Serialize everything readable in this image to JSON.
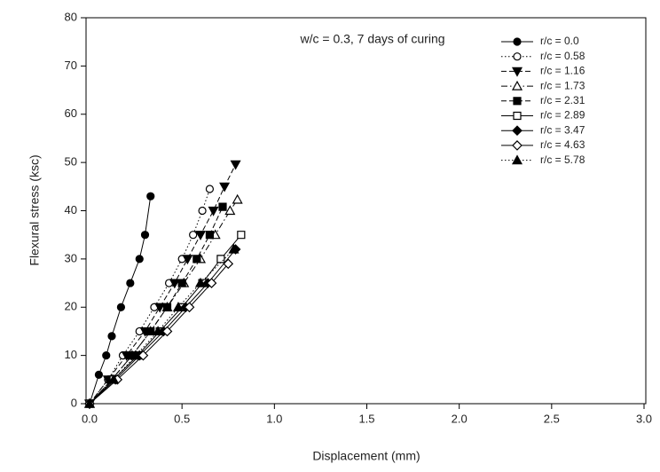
{
  "chart_data": {
    "type": "line",
    "annotation": "w/c = 0.3, 7 days of curing",
    "x_label": "Displacement (mm)",
    "y_label": "Flexural stress (ksc)",
    "xlim": [
      0,
      3
    ],
    "ylim": [
      0,
      80
    ],
    "xticks": [
      {
        "value": 0,
        "label": "0.0"
      },
      0.5,
      {
        "value": 1,
        "label": "1.0"
      },
      1.5,
      {
        "value": 2,
        "label": "2.0"
      },
      2.5,
      {
        "value": 3,
        "label": "3.0"
      }
    ],
    "yticks": [
      0,
      10,
      20,
      30,
      40,
      50,
      60,
      70,
      80
    ],
    "grid": false,
    "legend": "upper right",
    "series": [
      {
        "name": "r/c = 0.0",
        "color": "#000000",
        "marker": "circle",
        "filled": true,
        "dash": "solid",
        "x": [
          0,
          0.05,
          0.09,
          0.12,
          0.17,
          0.22,
          0.27,
          0.3,
          0.33
        ],
        "values": [
          0,
          6,
          10,
          14,
          20,
          25,
          30,
          35,
          43
        ]
      },
      {
        "name": "r/c = 0.58",
        "color": "#000000",
        "marker": "circle",
        "filled": false,
        "dash": "dotted",
        "x": [
          0,
          0.1,
          0.18,
          0.27,
          0.35,
          0.43,
          0.5,
          0.56,
          0.61,
          0.65
        ],
        "values": [
          0,
          5,
          10,
          15,
          20,
          25,
          30,
          35,
          40,
          44.5
        ]
      },
      {
        "name": "r/c = 1.16",
        "color": "#000000",
        "marker": "triangle-down",
        "filled": true,
        "dash": "dashed",
        "x": [
          0,
          0.1,
          0.2,
          0.3,
          0.38,
          0.46,
          0.53,
          0.6,
          0.67,
          0.73,
          0.79
        ],
        "values": [
          0,
          5,
          10,
          15,
          20,
          25,
          30,
          35,
          40,
          45,
          49.6
        ]
      },
      {
        "name": "r/c = 1.73",
        "color": "#000000",
        "marker": "triangle-up",
        "filled": false,
        "dash": "dashdot",
        "x": [
          0,
          0.12,
          0.23,
          0.33,
          0.42,
          0.51,
          0.6,
          0.68,
          0.76,
          0.8
        ],
        "values": [
          0,
          5,
          10,
          15,
          20,
          25,
          30,
          35,
          40,
          42.3
        ]
      },
      {
        "name": "r/c = 2.31",
        "color": "#000000",
        "marker": "square",
        "filled": true,
        "dash": "dashed",
        "x": [
          0,
          0.12,
          0.23,
          0.33,
          0.42,
          0.5,
          0.58,
          0.65,
          0.72
        ],
        "values": [
          0,
          5,
          10,
          15,
          20,
          25,
          30,
          35,
          40.8
        ]
      },
      {
        "name": "r/c = 2.89",
        "color": "#000000",
        "marker": "square",
        "filled": false,
        "dash": "solid",
        "x": [
          0,
          0.13,
          0.26,
          0.38,
          0.5,
          0.61,
          0.71,
          0.82
        ],
        "values": [
          0,
          5,
          10,
          15,
          20,
          25,
          30,
          35
        ]
      },
      {
        "name": "r/c = 3.47",
        "color": "#000000",
        "marker": "diamond",
        "filled": true,
        "dash": "solid",
        "x": [
          0,
          0.14,
          0.27,
          0.4,
          0.52,
          0.64,
          0.79
        ],
        "values": [
          0,
          5,
          10,
          15,
          20,
          25,
          32
        ]
      },
      {
        "name": "r/c = 4.63",
        "color": "#000000",
        "marker": "diamond",
        "filled": false,
        "dash": "solid",
        "x": [
          0,
          0.15,
          0.29,
          0.42,
          0.54,
          0.66,
          0.75
        ],
        "values": [
          0,
          5,
          10,
          15,
          20,
          25,
          29
        ]
      },
      {
        "name": "r/c = 5.78",
        "color": "#000000",
        "marker": "triangle-up",
        "filled": true,
        "dash": "dotted",
        "x": [
          0,
          0.13,
          0.25,
          0.37,
          0.48,
          0.6,
          0.78
        ],
        "values": [
          0,
          5,
          10,
          15,
          20,
          25,
          32
        ]
      }
    ]
  }
}
